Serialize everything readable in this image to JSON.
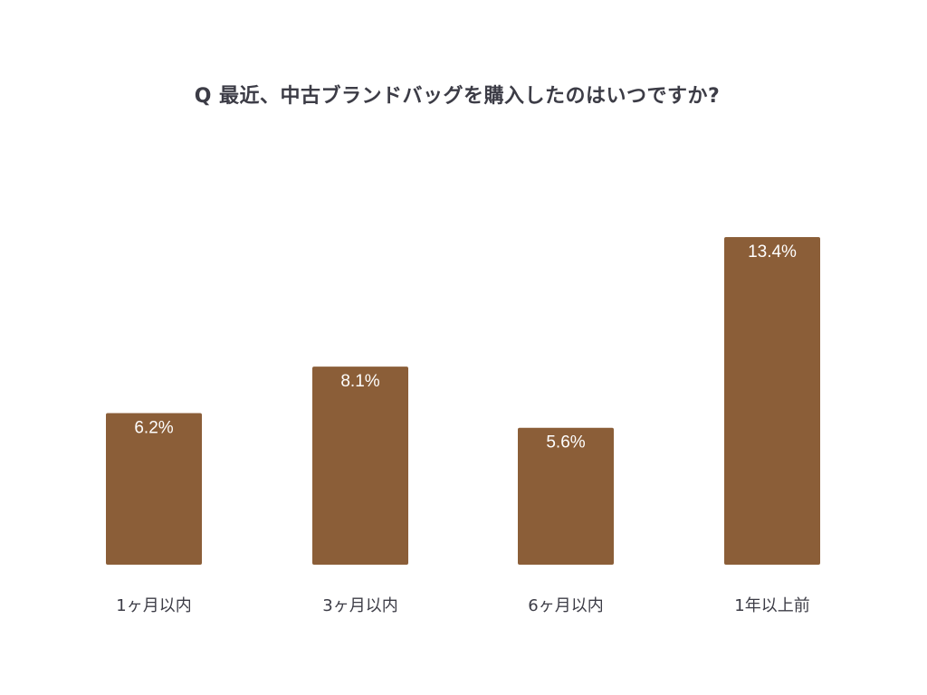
{
  "chart_data": {
    "type": "bar",
    "title": "Q 最近、中古ブランドバッグを購入したのはいつですか?",
    "categories": [
      "1ヶ月以内",
      "3ヶ月以内",
      "6ヶ月以内",
      "1年以上前"
    ],
    "values": [
      6.2,
      8.1,
      5.6,
      13.4
    ],
    "value_labels": [
      "6.2%",
      "8.1%",
      "5.6%",
      "13.4%"
    ],
    "unit": "%",
    "ylim": [
      0,
      13.4
    ],
    "grid": false,
    "legend": "none",
    "colors": {
      "bar": "#8B5E38",
      "bar_label": "#ffffff",
      "title": "#3c3c46",
      "category_label": "#3c3c46"
    }
  }
}
